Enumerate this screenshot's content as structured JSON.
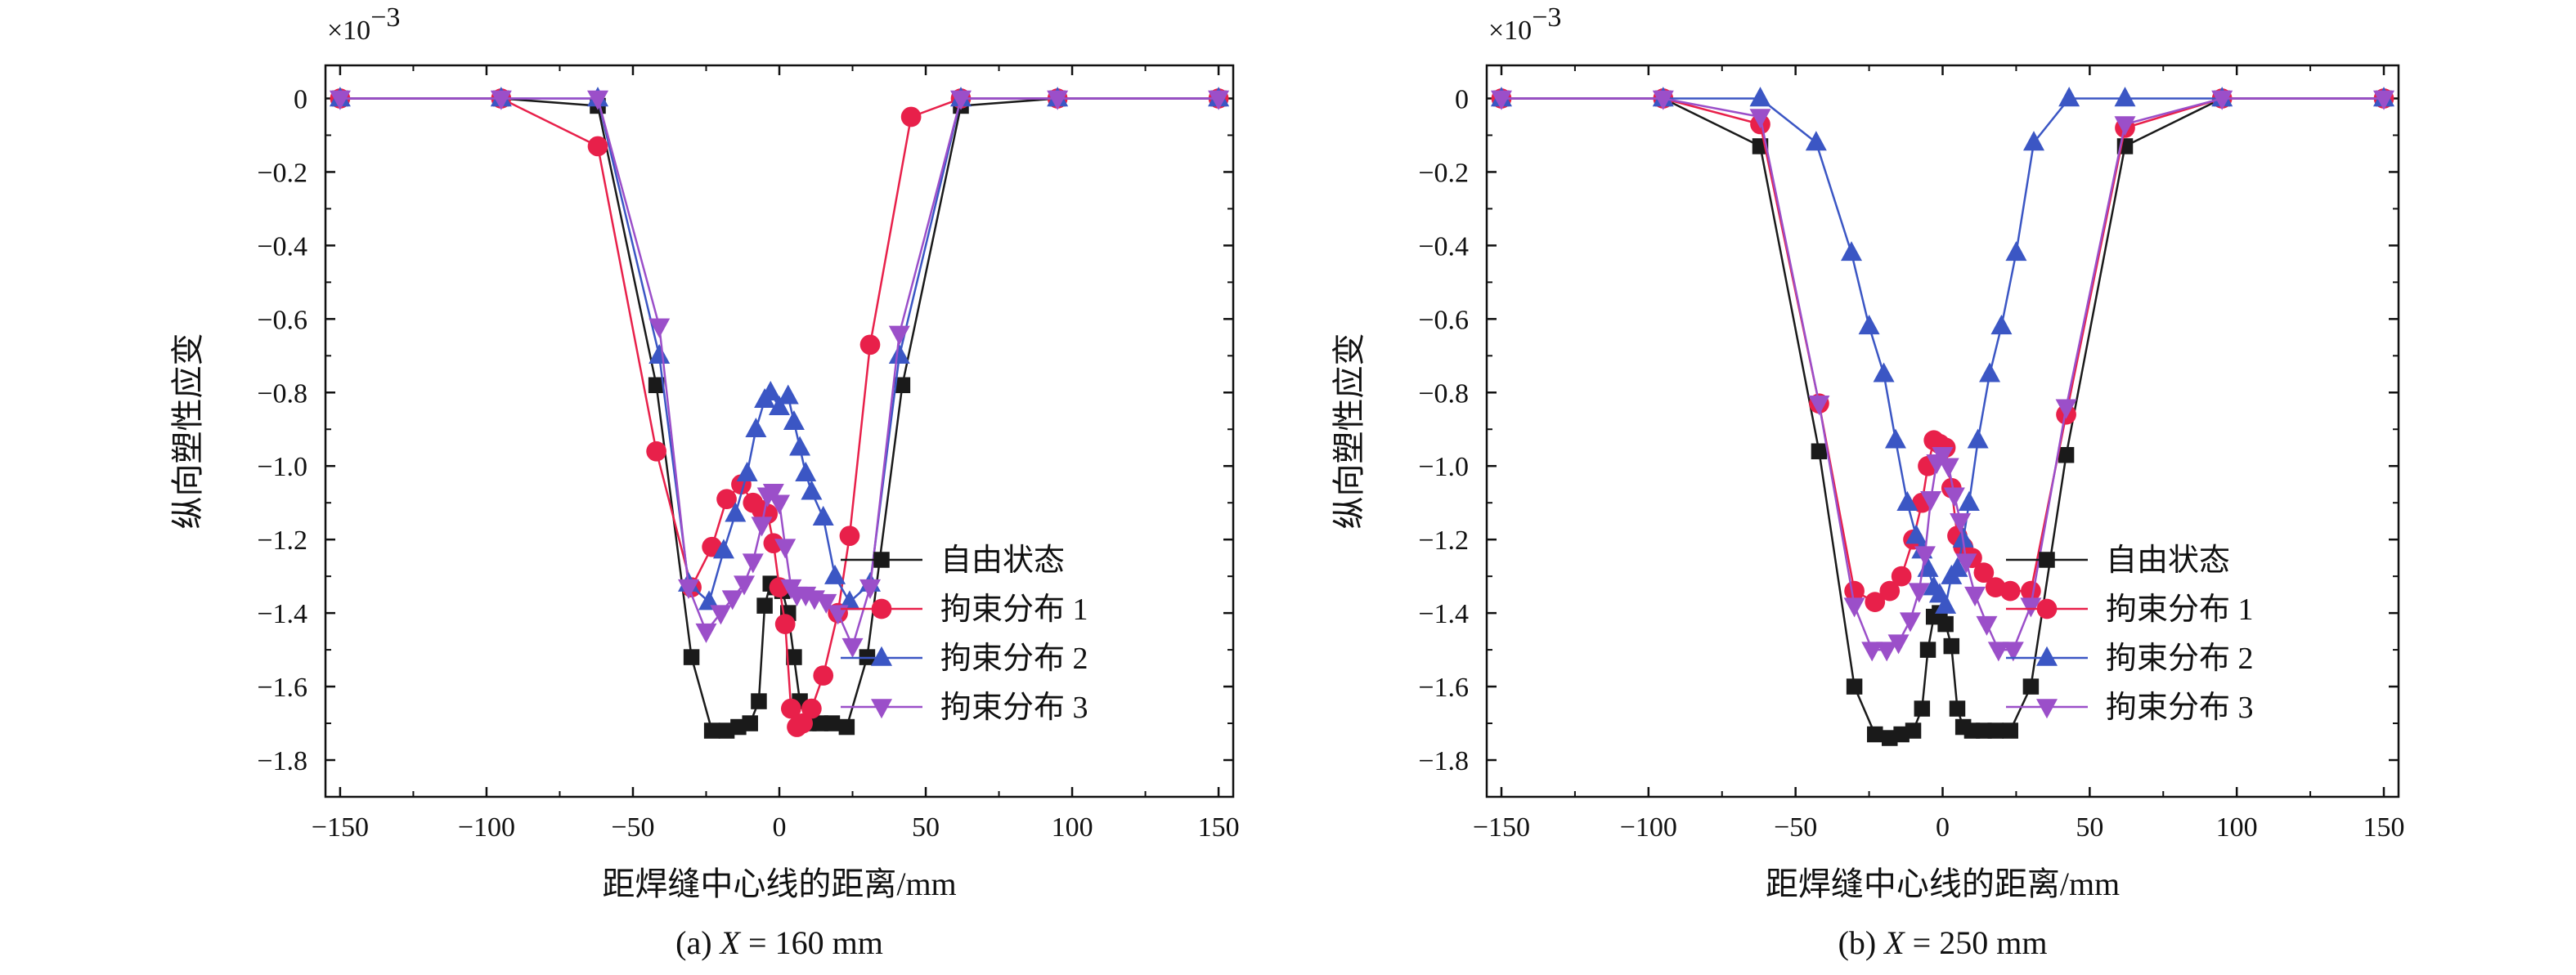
{
  "colors": {
    "自由状态": "#1a1a1a",
    "拘束分布 1": "#e8204a",
    "拘束分布 2": "#3b56c4",
    "拘束分布 3": "#9b4fc9"
  },
  "chart_data": [
    {
      "type": "line",
      "caption": "(a) X = 160 mm",
      "caption_prefix": "(a) ",
      "caption_var": "X",
      "caption_suffix": " = 160 mm",
      "xlabel": "距焊缝中心线的距离/mm",
      "ylabel": "纵向塑性应变",
      "multiplier": "×10",
      "multiplier_exp": "−3",
      "xlim": [
        -155,
        155
      ],
      "ylim": [
        -1.9,
        0.09
      ],
      "xticks": [
        -150,
        -100,
        -50,
        0,
        50,
        100,
        150
      ],
      "xtick_labels": [
        "−150",
        "−100",
        "−50",
        "0",
        "50",
        "100",
        "150"
      ],
      "yticks": [
        0,
        -0.2,
        -0.4,
        -0.6,
        -0.8,
        -1.0,
        -1.2,
        -1.4,
        -1.6,
        -1.8
      ],
      "ytick_labels": [
        "0",
        "−0.2",
        "−0.4",
        "−0.6",
        "−0.8",
        "−1.0",
        "−1.2",
        "−1.4",
        "−1.6",
        "−1.8"
      ],
      "legend_position": "lower-right",
      "series": [
        {
          "name": "自由状态",
          "marker": "square",
          "x": [
            -150,
            -95,
            -62,
            -42,
            -30,
            -23,
            -18,
            -14,
            -10,
            -7,
            -5,
            -3,
            -1,
            1,
            3,
            5,
            7,
            10,
            14,
            18,
            23,
            30,
            42,
            62,
            95,
            150
          ],
          "y": [
            0,
            0,
            -0.02,
            -0.78,
            -1.52,
            -1.72,
            -1.72,
            -1.71,
            -1.7,
            -1.64,
            -1.38,
            -1.32,
            -1.33,
            -1.34,
            -1.4,
            -1.52,
            -1.64,
            -1.7,
            -1.7,
            -1.7,
            -1.71,
            -1.52,
            -0.78,
            -0.02,
            0,
            0
          ]
        },
        {
          "name": "拘束分布 1",
          "marker": "circle",
          "x": [
            -150,
            -95,
            -62,
            -42,
            -30,
            -23,
            -18,
            -13,
            -9,
            -6,
            -4,
            -2,
            0,
            2,
            4,
            6,
            8,
            11,
            15,
            20,
            24,
            31,
            45,
            62,
            95,
            150
          ],
          "y": [
            0,
            0,
            -0.13,
            -0.96,
            -1.33,
            -1.22,
            -1.09,
            -1.05,
            -1.1,
            -1.12,
            -1.13,
            -1.21,
            -1.33,
            -1.43,
            -1.66,
            -1.71,
            -1.7,
            -1.66,
            -1.57,
            -1.4,
            -1.19,
            -0.67,
            -0.05,
            0,
            0,
            0
          ]
        },
        {
          "name": "拘束分布 2",
          "marker": "triangle-up",
          "x": [
            -150,
            -95,
            -62,
            -41,
            -31,
            -24,
            -19,
            -15,
            -11,
            -8,
            -5,
            -3,
            0,
            3,
            5,
            7,
            9,
            11,
            15,
            19,
            24,
            31,
            41,
            62,
            95,
            150
          ],
          "y": [
            0,
            0,
            0,
            -0.7,
            -1.32,
            -1.37,
            -1.23,
            -1.13,
            -1.02,
            -0.9,
            -0.82,
            -0.8,
            -0.84,
            -0.81,
            -0.88,
            -0.95,
            -1.02,
            -1.07,
            -1.14,
            -1.3,
            -1.37,
            -1.32,
            -0.7,
            0,
            0,
            0
          ]
        },
        {
          "name": "拘束分布 3",
          "marker": "triangle-down",
          "x": [
            -150,
            -95,
            -62,
            -41,
            -31,
            -25,
            -20,
            -16,
            -12,
            -9,
            -6,
            -4,
            -2,
            0,
            2,
            4,
            6,
            9,
            12,
            16,
            20,
            25,
            31,
            41,
            62,
            95,
            150
          ],
          "y": [
            0,
            0,
            0,
            -0.62,
            -1.33,
            -1.45,
            -1.4,
            -1.36,
            -1.32,
            -1.26,
            -1.16,
            -1.08,
            -1.07,
            -1.1,
            -1.22,
            -1.33,
            -1.35,
            -1.35,
            -1.36,
            -1.37,
            -1.4,
            -1.49,
            -1.33,
            -0.64,
            0,
            0,
            0
          ]
        }
      ]
    },
    {
      "type": "line",
      "caption": "(b) X = 250 mm",
      "caption_prefix": "(b) ",
      "caption_var": "X",
      "caption_suffix": " = 250 mm",
      "xlabel": "距焊缝中心线的距离/mm",
      "ylabel": "纵向塑性应变",
      "multiplier": "×10",
      "multiplier_exp": "−3",
      "xlim": [
        -155,
        155
      ],
      "ylim": [
        -1.9,
        0.09
      ],
      "xticks": [
        -150,
        -100,
        -50,
        0,
        50,
        100,
        150
      ],
      "xtick_labels": [
        "−150",
        "−100",
        "−50",
        "0",
        "50",
        "100",
        "150"
      ],
      "yticks": [
        0,
        -0.2,
        -0.4,
        -0.6,
        -0.8,
        -1.0,
        -1.2,
        -1.4,
        -1.6,
        -1.8
      ],
      "ytick_labels": [
        "0",
        "−0.2",
        "−0.4",
        "−0.6",
        "−0.8",
        "−1.0",
        "−1.2",
        "−1.4",
        "−1.6",
        "−1.8"
      ],
      "legend_position": "lower-right",
      "series": [
        {
          "name": "自由状态",
          "marker": "square",
          "x": [
            -150,
            -95,
            -62,
            -42,
            -30,
            -23,
            -18,
            -14,
            -10,
            -7,
            -5,
            -3,
            -1,
            1,
            3,
            5,
            7,
            10,
            14,
            18,
            23,
            30,
            42,
            62,
            95,
            150
          ],
          "y": [
            0,
            0,
            -0.13,
            -0.96,
            -1.6,
            -1.73,
            -1.74,
            -1.73,
            -1.72,
            -1.66,
            -1.5,
            -1.41,
            -1.4,
            -1.43,
            -1.49,
            -1.66,
            -1.71,
            -1.72,
            -1.72,
            -1.72,
            -1.72,
            -1.6,
            -0.97,
            -0.13,
            0,
            0
          ]
        },
        {
          "name": "拘束分布 1",
          "marker": "circle",
          "x": [
            -150,
            -95,
            -62,
            -42,
            -30,
            -23,
            -18,
            -14,
            -10,
            -7,
            -5,
            -3,
            -1,
            1,
            3,
            5,
            7,
            10,
            14,
            18,
            23,
            30,
            42,
            62,
            95,
            150
          ],
          "y": [
            0,
            0,
            -0.07,
            -0.83,
            -1.34,
            -1.37,
            -1.34,
            -1.3,
            -1.2,
            -1.1,
            -1.0,
            -0.93,
            -0.94,
            -0.95,
            -1.06,
            -1.19,
            -1.22,
            -1.25,
            -1.29,
            -1.33,
            -1.34,
            -1.34,
            -0.86,
            -0.08,
            0,
            0
          ]
        },
        {
          "name": "拘束分布 2",
          "marker": "triangle-up",
          "x": [
            -150,
            -95,
            -62,
            -43,
            -31,
            -25,
            -20,
            -16,
            -12,
            -9,
            -7,
            -5,
            -3,
            -1,
            1,
            3,
            5,
            7,
            9,
            12,
            16,
            20,
            25,
            31,
            43,
            62,
            95,
            150
          ],
          "y": [
            0,
            0,
            0,
            -0.12,
            -0.42,
            -0.62,
            -0.75,
            -0.93,
            -1.1,
            -1.19,
            -1.23,
            -1.28,
            -1.33,
            -1.35,
            -1.38,
            -1.3,
            -1.28,
            -1.2,
            -1.1,
            -0.93,
            -0.75,
            -0.62,
            -0.42,
            -0.12,
            0,
            0,
            0,
            0
          ]
        },
        {
          "name": "拘束分布 3",
          "marker": "triangle-down",
          "x": [
            -150,
            -95,
            -62,
            -42,
            -30,
            -24,
            -19,
            -15,
            -11,
            -8,
            -6,
            -4,
            -2,
            0,
            2,
            4,
            6,
            8,
            11,
            15,
            19,
            24,
            30,
            42,
            62,
            95,
            150
          ],
          "y": [
            0,
            0,
            -0.05,
            -0.83,
            -1.38,
            -1.5,
            -1.5,
            -1.48,
            -1.42,
            -1.34,
            -1.24,
            -1.09,
            -0.99,
            -0.97,
            -1.0,
            -1.08,
            -1.15,
            -1.26,
            -1.35,
            -1.43,
            -1.5,
            -1.5,
            -1.38,
            -0.84,
            -0.07,
            0,
            0
          ]
        }
      ]
    }
  ]
}
